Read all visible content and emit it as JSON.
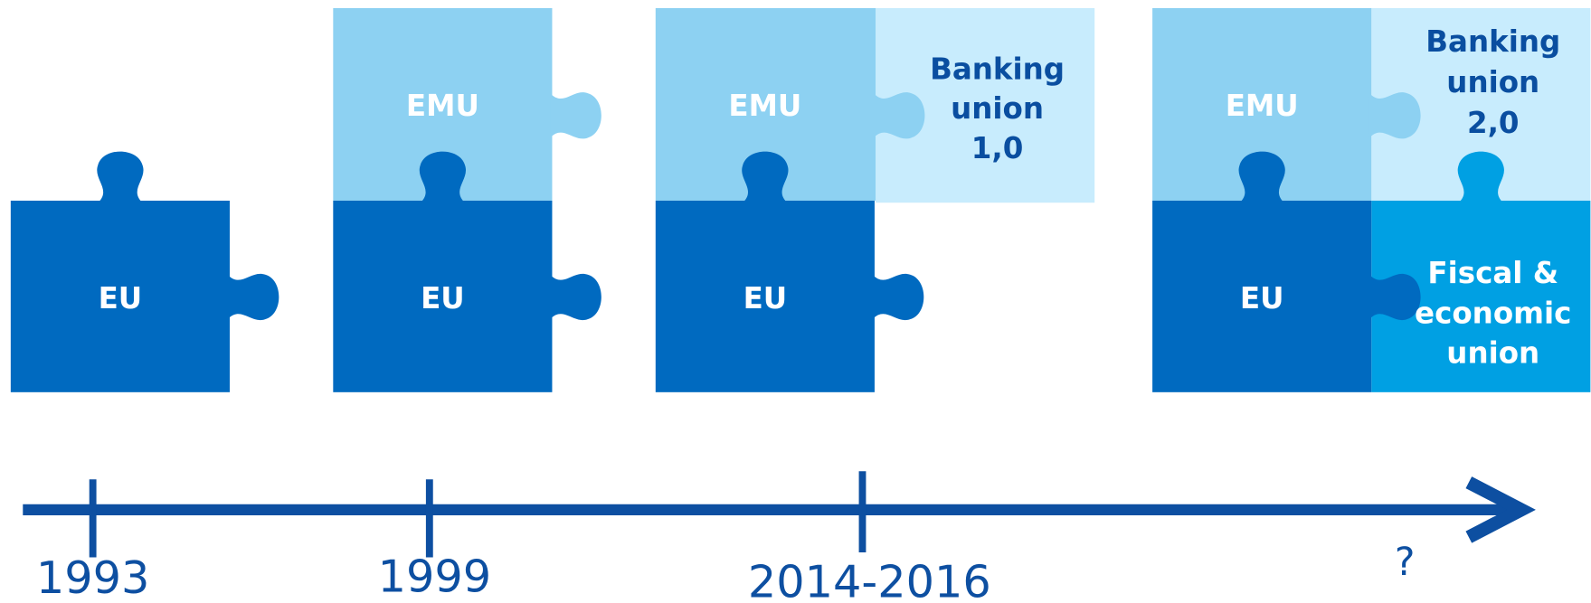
{
  "stages": [
    {
      "pieces": [
        {
          "lines": [
            "EU"
          ]
        }
      ],
      "date": "1993"
    },
    {
      "pieces": [
        {
          "lines": [
            "EMU"
          ]
        },
        {
          "lines": [
            "EU"
          ]
        }
      ],
      "date": "1999"
    },
    {
      "pieces": [
        {
          "lines": [
            "EMU"
          ]
        },
        {
          "lines": [
            "EU"
          ]
        },
        {
          "lines": [
            "Banking",
            "union",
            "1,0"
          ]
        }
      ],
      "date": "2014-2016"
    },
    {
      "pieces": [
        {
          "lines": [
            "EMU"
          ]
        },
        {
          "lines": [
            "EU"
          ]
        },
        {
          "lines": [
            "Banking",
            "union",
            "2,0"
          ]
        },
        {
          "lines": [
            "Fiscal &",
            "economic",
            "union"
          ]
        }
      ],
      "date": "?"
    }
  ]
}
